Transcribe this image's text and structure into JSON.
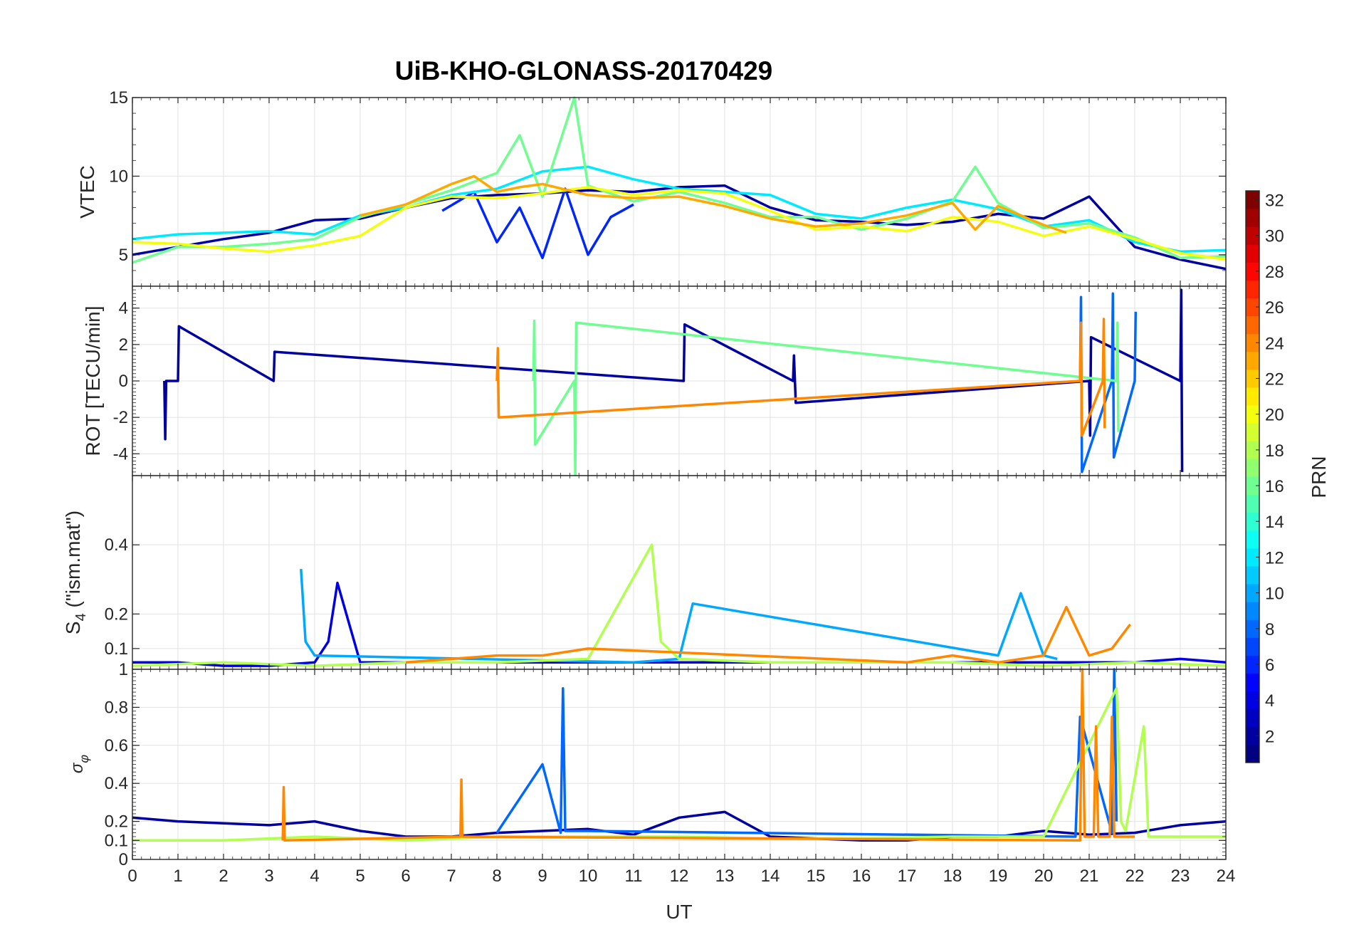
{
  "chart_data": [
    {
      "type": "line",
      "panel": "vtec",
      "title": "UiB-KHO-GLONASS-20170429",
      "ylabel": "VTEC",
      "xlabel": "",
      "xlim": [
        0,
        24
      ],
      "ylim": [
        3,
        15
      ],
      "yticks": [
        "5",
        "10",
        "15"
      ],
      "ytick_values": [
        5,
        10,
        15
      ],
      "series": [
        {
          "name": "PRN 2",
          "prn": 2,
          "x": [
            0,
            1,
            2,
            3,
            4,
            5,
            6,
            7,
            8,
            9,
            10,
            11,
            12,
            13,
            14,
            15,
            16,
            17,
            18,
            19,
            20,
            21,
            22,
            23,
            24
          ],
          "values": [
            5,
            5.5,
            6,
            6.4,
            7.2,
            7.3,
            8,
            8.6,
            8.8,
            8.9,
            9.1,
            9,
            9.3,
            9.4,
            8,
            7.2,
            7.1,
            6.9,
            7.1,
            7.6,
            7.3,
            8.7,
            5.5,
            4.7,
            4.1
          ]
        },
        {
          "name": "PRN 6",
          "prn": 6,
          "x": [
            6.8,
            7.5,
            8,
            8.5,
            9,
            9.5,
            10,
            10.5,
            11
          ],
          "values": [
            7.8,
            9,
            5.8,
            8,
            4.8,
            9.2,
            5,
            7.4,
            8.2
          ]
        },
        {
          "name": "PRN 12",
          "prn": 12,
          "x": [
            0,
            1,
            2,
            3,
            4,
            5,
            6,
            7,
            8,
            9,
            10,
            11,
            12,
            13,
            14,
            15,
            16,
            17,
            18,
            19,
            20,
            21,
            22,
            23,
            24
          ],
          "values": [
            6,
            6.3,
            6.4,
            6.5,
            6.3,
            7.5,
            8,
            8.8,
            9.2,
            10.3,
            10.6,
            9.8,
            9.2,
            9,
            8.8,
            7.6,
            7.3,
            8,
            8.5,
            7.9,
            6.8,
            7.2,
            5.8,
            5.2,
            5.3
          ]
        },
        {
          "name": "PRN 16",
          "prn": 16,
          "x": [
            0,
            1,
            2,
            3,
            4,
            5,
            6,
            7,
            8,
            8.5,
            9,
            9.7,
            10,
            11,
            12,
            13,
            14,
            15,
            16,
            17,
            18,
            18.5,
            19,
            20,
            21,
            22,
            23,
            24
          ],
          "values": [
            4.5,
            5.5,
            5.5,
            5.7,
            6,
            7.4,
            8.2,
            9.1,
            10.2,
            12.6,
            8.7,
            15,
            9.4,
            8.4,
            9,
            8.3,
            7.4,
            7.4,
            6.6,
            7.3,
            8.4,
            10.6,
            8.3,
            6.7,
            7,
            6.1,
            4.8,
            4.9
          ]
        },
        {
          "name": "PRN 20",
          "prn": 20,
          "x": [
            0,
            1,
            2,
            3,
            4,
            5,
            6,
            7,
            8,
            9,
            10,
            11,
            12,
            13,
            14,
            15,
            16,
            17,
            18,
            19,
            20,
            21,
            22,
            23,
            24
          ],
          "values": [
            5.8,
            5.7,
            5.4,
            5.2,
            5.6,
            6.2,
            8,
            8.7,
            8.6,
            8.9,
            9.3,
            8.8,
            9.1,
            8.9,
            7.8,
            6.6,
            6.8,
            6.5,
            7.4,
            7.1,
            6.2,
            6.8,
            6,
            5.1,
            4.7
          ]
        },
        {
          "name": "PRN 23",
          "prn": 23,
          "x": [
            5,
            6,
            7,
            7.5,
            8,
            8.5,
            9,
            10,
            11,
            12,
            13,
            14,
            15,
            16,
            17,
            18,
            18.5,
            19,
            20,
            20.5
          ],
          "values": [
            7.5,
            8.2,
            9.5,
            10,
            9,
            9.3,
            9.5,
            8.8,
            8.6,
            8.7,
            8.1,
            7.3,
            6.8,
            7,
            7.5,
            8.3,
            6.6,
            8.1,
            6.9,
            6.4
          ]
        }
      ]
    },
    {
      "type": "line",
      "panel": "rot",
      "ylabel": "ROT [TECU/min]",
      "xlabel": "",
      "xlim": [
        0,
        24
      ],
      "ylim": [
        -5.2,
        5.2
      ],
      "yticks": [
        "-4",
        "-2",
        "0",
        "2",
        "4"
      ],
      "ytick_values": [
        -4,
        -2,
        0,
        2,
        4
      ],
      "series": [
        {
          "name": "PRN 2",
          "prn": 2,
          "x": [
            0.7,
            0.72,
            0.74,
            1,
            1.02,
            3.1,
            3.12,
            12.1,
            12.12,
            14.5,
            14.52,
            14.56,
            21,
            21.02,
            21.04,
            23,
            23.02,
            23.04
          ],
          "values": [
            0,
            -3.2,
            0,
            0,
            3,
            0,
            1.6,
            0,
            3.1,
            0,
            1.4,
            -1.2,
            0,
            -3,
            2.4,
            0,
            5,
            -5
          ]
        },
        {
          "name": "PRN 8",
          "prn": 8,
          "x": [
            20.8,
            20.82,
            20.84,
            21.5,
            21.52,
            21.54,
            22,
            22.02
          ],
          "values": [
            0,
            4.6,
            -5,
            0,
            4.8,
            -4.2,
            0,
            3.8
          ]
        },
        {
          "name": "PRN 16",
          "prn": 16,
          "x": [
            8.8,
            8.82,
            8.84,
            9.7,
            9.72,
            9.74,
            21.6,
            21.62,
            21.64
          ],
          "values": [
            0,
            3.3,
            -3.5,
            0,
            -5.2,
            3.2,
            0,
            3.2,
            -2.8
          ]
        },
        {
          "name": "PRN 24",
          "prn": 24,
          "x": [
            8,
            8.02,
            8.04,
            20.8,
            20.82,
            20.84,
            21.3,
            21.32,
            21.34
          ],
          "values": [
            0,
            1.8,
            -2,
            0,
            3.2,
            -3,
            0,
            3.4,
            -2.6
          ]
        }
      ]
    },
    {
      "type": "line",
      "panel": "s4",
      "ylabel": "S4 (\"ism.mat\")",
      "xlabel": "",
      "xlim": [
        0,
        24
      ],
      "ylim": [
        0.04,
        0.6
      ],
      "yticks": [
        "0.1",
        "0.2",
        "0.4"
      ],
      "ytick_values": [
        0.1,
        0.2,
        0.4
      ],
      "series": [
        {
          "name": "PRN 4",
          "prn": 4,
          "x": [
            0,
            1,
            2,
            3,
            4,
            4.3,
            4.5,
            5,
            6,
            7,
            8,
            9,
            10,
            11,
            12,
            13,
            14,
            15,
            16,
            17,
            18,
            19,
            20,
            21,
            22,
            23,
            24
          ],
          "values": [
            0.06,
            0.06,
            0.05,
            0.05,
            0.06,
            0.12,
            0.29,
            0.06,
            0.06,
            0.06,
            0.06,
            0.06,
            0.06,
            0.06,
            0.06,
            0.06,
            0.06,
            0.06,
            0.06,
            0.06,
            0.06,
            0.06,
            0.06,
            0.06,
            0.06,
            0.07,
            0.06
          ]
        },
        {
          "name": "PRN 10",
          "prn": 10,
          "x": [
            3.7,
            3.8,
            4,
            11,
            12,
            12.3,
            19,
            19.5,
            20,
            20.3
          ],
          "values": [
            0.33,
            0.12,
            0.08,
            0.06,
            0.07,
            0.23,
            0.08,
            0.26,
            0.08,
            0.07
          ]
        },
        {
          "name": "PRN 18",
          "prn": 18,
          "x": [
            0,
            2,
            4,
            6,
            8,
            10,
            11.4,
            11.6,
            12,
            14,
            16,
            18,
            20,
            22,
            24
          ],
          "values": [
            0.05,
            0.06,
            0.05,
            0.06,
            0.06,
            0.07,
            0.4,
            0.12,
            0.07,
            0.06,
            0.06,
            0.06,
            0.05,
            0.06,
            0.05
          ]
        },
        {
          "name": "PRN 24",
          "prn": 24,
          "x": [
            6,
            8,
            9,
            10,
            17,
            18,
            19,
            20,
            20.5,
            21,
            21.5,
            21.9
          ],
          "values": [
            0.06,
            0.08,
            0.08,
            0.1,
            0.06,
            0.08,
            0.06,
            0.08,
            0.22,
            0.08,
            0.1,
            0.17
          ]
        }
      ]
    },
    {
      "type": "line",
      "panel": "sigma-phi",
      "ylabel": "σφ",
      "xlabel": "UT",
      "xlim": [
        0,
        24
      ],
      "ylim": [
        0,
        1
      ],
      "yticks": [
        "0",
        "0.1",
        "0.2",
        "0.4",
        "0.6",
        "0.8",
        "1"
      ],
      "ytick_values": [
        0,
        0.1,
        0.2,
        0.4,
        0.6,
        0.8,
        1
      ],
      "xticks": [
        "0",
        "1",
        "2",
        "3",
        "4",
        "5",
        "6",
        "7",
        "8",
        "9",
        "10",
        "11",
        "12",
        "13",
        "14",
        "15",
        "16",
        "17",
        "18",
        "19",
        "20",
        "21",
        "22",
        "23",
        "24"
      ],
      "series": [
        {
          "name": "PRN 2",
          "prn": 2,
          "x": [
            0,
            1,
            2,
            3,
            4,
            5,
            6,
            7,
            8,
            9,
            10,
            11,
            12,
            13,
            14,
            15,
            16,
            17,
            18,
            19,
            20,
            21,
            22,
            23,
            24
          ],
          "values": [
            0.22,
            0.2,
            0.19,
            0.18,
            0.2,
            0.15,
            0.12,
            0.12,
            0.14,
            0.15,
            0.16,
            0.13,
            0.22,
            0.25,
            0.12,
            0.11,
            0.1,
            0.1,
            0.12,
            0.12,
            0.15,
            0.13,
            0.14,
            0.18,
            0.2
          ]
        },
        {
          "name": "PRN 8",
          "prn": 8,
          "x": [
            8,
            9,
            9.4,
            9.45,
            9.5,
            10,
            20.7,
            20.8,
            21.5,
            21.55,
            21.6
          ],
          "values": [
            0.14,
            0.5,
            0.14,
            0.9,
            0.15,
            0.15,
            0.12,
            0.75,
            0.14,
            1,
            0.2
          ]
        },
        {
          "name": "PRN 18",
          "prn": 18,
          "x": [
            0,
            2,
            4,
            6,
            8,
            10,
            12,
            14,
            16,
            18,
            20,
            21.6,
            21.7,
            21.8,
            22.2,
            22.3,
            24
          ],
          "values": [
            0.1,
            0.1,
            0.12,
            0.1,
            0.12,
            0.12,
            0.12,
            0.11,
            0.11,
            0.12,
            0.12,
            0.9,
            0.2,
            0.15,
            0.7,
            0.12,
            0.12
          ]
        },
        {
          "name": "PRN 24",
          "prn": 24,
          "x": [
            3.3,
            3.32,
            3.34,
            7.2,
            7.22,
            7.24,
            20.8,
            20.85,
            20.9,
            21.1,
            21.15,
            21.2,
            21.45,
            21.5,
            21.55,
            22
          ],
          "values": [
            0.1,
            0.38,
            0.1,
            0.12,
            0.42,
            0.12,
            0.1,
            1,
            0.12,
            0.12,
            0.7,
            0.12,
            0.12,
            0.75,
            0.12,
            0.12
          ]
        }
      ]
    }
  ],
  "x_axis": {
    "label": "UT",
    "ticks": [
      "0",
      "1",
      "2",
      "3",
      "4",
      "5",
      "6",
      "7",
      "8",
      "9",
      "10",
      "11",
      "12",
      "13",
      "14",
      "15",
      "16",
      "17",
      "18",
      "19",
      "20",
      "21",
      "22",
      "23",
      "24"
    ]
  },
  "colorbar": {
    "label": "PRN",
    "colormap": "jet",
    "range": [
      1,
      32
    ],
    "ticks": [
      "2",
      "4",
      "6",
      "8",
      "10",
      "12",
      "14",
      "16",
      "18",
      "20",
      "22",
      "24",
      "26",
      "28",
      "30",
      "32"
    ],
    "tick_values": [
      2,
      4,
      6,
      8,
      10,
      12,
      14,
      16,
      18,
      20,
      22,
      24,
      26,
      28,
      30,
      32
    ]
  },
  "labels": {
    "s4_prefix": "S",
    "s4_sub": "4",
    "s4_suffix": " (\"ism.mat\")",
    "sigma": "σ",
    "phi": "φ"
  }
}
